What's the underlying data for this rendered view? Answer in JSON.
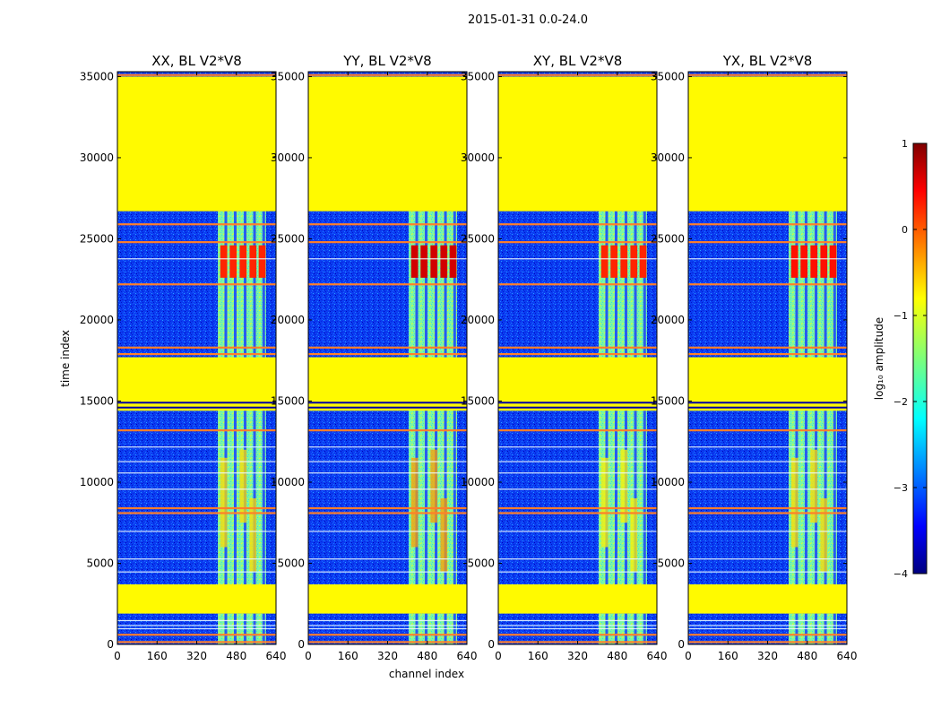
{
  "suptitle": "2015-01-31 0.0-24.0",
  "xlabel": "channel index",
  "ylabel": "time index",
  "colorbar": {
    "label": "log₁₀ amplitude",
    "range": [
      -4,
      1
    ],
    "ticks": [
      1,
      0,
      -1,
      -2,
      -3,
      -4
    ],
    "tick_labels": [
      "1",
      "0",
      "−1",
      "−2",
      "−3",
      "−4"
    ],
    "colormap": "jet"
  },
  "chart_data": [
    {
      "type": "heatmap",
      "title": "XX, BL V2*V8",
      "xlim": [
        0,
        640
      ],
      "ylim": [
        0,
        35300
      ],
      "xticks": [
        0,
        160,
        320,
        480,
        640
      ],
      "yticks": [
        0,
        5000,
        10000,
        15000,
        20000,
        25000,
        30000,
        35000
      ],
      "xtick_labels": [
        "0",
        "160",
        "320",
        "480",
        "640"
      ],
      "ytick_labels": [
        "0",
        "5000",
        "10000",
        "15000",
        "20000",
        "25000",
        "30000",
        "35000"
      ],
      "background_level": -3.1,
      "flagged_level": -0.85,
      "flagged_time_bands": [
        [
          26700,
          35000
        ],
        [
          14400,
          17700
        ],
        [
          1900,
          3700
        ]
      ],
      "band_channels": [
        405,
        600
      ],
      "band_level": -1.3,
      "peak_level": 0.2
    },
    {
      "type": "heatmap",
      "title": "YY, BL V2*V8",
      "xlim": [
        0,
        640
      ],
      "ylim": [
        0,
        35300
      ],
      "xticks": [
        0,
        160,
        320,
        480,
        640
      ],
      "yticks": [
        0,
        5000,
        10000,
        15000,
        20000,
        25000,
        30000,
        35000
      ],
      "xtick_labels": [
        "0",
        "160",
        "320",
        "480",
        "640"
      ],
      "ytick_labels": [
        "0",
        "5000",
        "10000",
        "15000",
        "20000",
        "25000",
        "30000",
        "35000"
      ],
      "background_level": -3.1,
      "flagged_level": -0.85,
      "flagged_time_bands": [
        [
          26700,
          35000
        ],
        [
          14400,
          17700
        ],
        [
          1900,
          3700
        ]
      ],
      "band_channels": [
        405,
        600
      ],
      "band_level": -1.0,
      "peak_level": 0.6
    },
    {
      "type": "heatmap",
      "title": "XY, BL V2*V8",
      "xlim": [
        0,
        640
      ],
      "ylim": [
        0,
        35300
      ],
      "xticks": [
        0,
        160,
        320,
        480,
        640
      ],
      "yticks": [
        0,
        5000,
        10000,
        15000,
        20000,
        25000,
        30000,
        35000
      ],
      "xtick_labels": [
        "0",
        "160",
        "320",
        "480",
        "640"
      ],
      "ytick_labels": [
        "0",
        "5000",
        "10000",
        "15000",
        "20000",
        "25000",
        "30000",
        "35000"
      ],
      "background_level": -3.1,
      "flagged_level": -0.85,
      "flagged_time_bands": [
        [
          26700,
          35000
        ],
        [
          14400,
          17700
        ],
        [
          1900,
          3700
        ]
      ],
      "band_channels": [
        405,
        600
      ],
      "band_level": -1.4,
      "peak_level": 0.2
    },
    {
      "type": "heatmap",
      "title": "YX, BL V2*V8",
      "xlim": [
        0,
        640
      ],
      "ylim": [
        0,
        35300
      ],
      "xticks": [
        0,
        160,
        320,
        480,
        640
      ],
      "yticks": [
        0,
        5000,
        10000,
        15000,
        20000,
        25000,
        30000,
        35000
      ],
      "xtick_labels": [
        "0",
        "160",
        "320",
        "480",
        "640"
      ],
      "ytick_labels": [
        "0",
        "5000",
        "10000",
        "15000",
        "20000",
        "25000",
        "30000",
        "35000"
      ],
      "background_level": -3.1,
      "flagged_level": -0.85,
      "flagged_time_bands": [
        [
          26700,
          35000
        ],
        [
          14400,
          17700
        ],
        [
          1900,
          3700
        ]
      ],
      "band_channels": [
        405,
        600
      ],
      "band_level": -1.3,
      "peak_level": 0.3
    }
  ]
}
